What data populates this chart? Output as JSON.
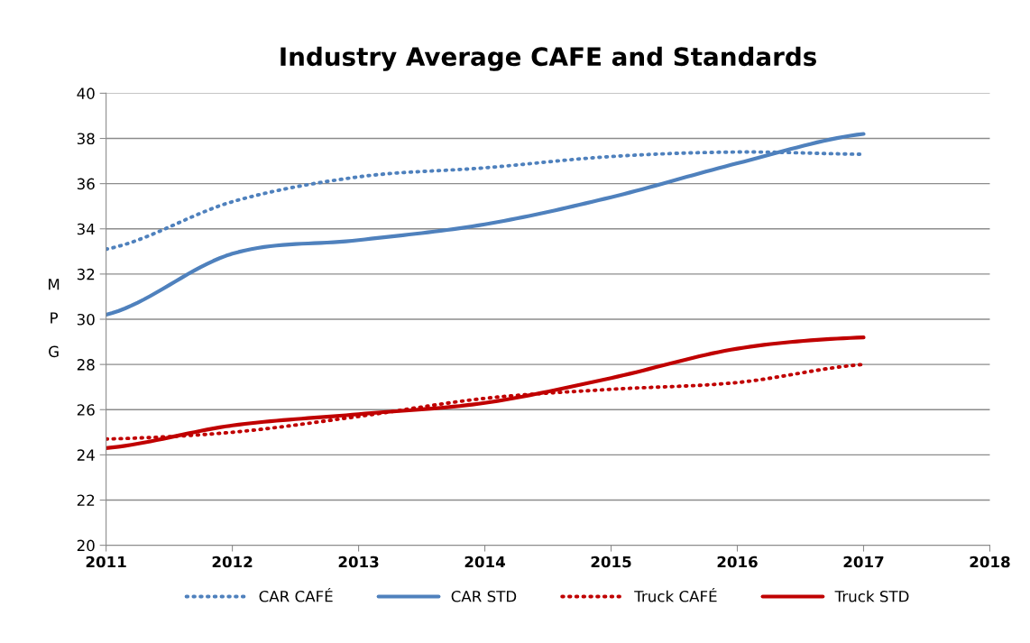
{
  "chart_data": {
    "type": "line",
    "title": "Industry Average CAFE and Standards",
    "ylabel": "MPG",
    "x": [
      2011,
      2012,
      2013,
      2014,
      2015,
      2016,
      2017
    ],
    "series": [
      {
        "name": "CAR CAFÉ",
        "color": "#4f81bd",
        "line_style": "dotted",
        "values": [
          33.1,
          35.2,
          36.3,
          36.7,
          37.2,
          37.4,
          37.3
        ]
      },
      {
        "name": "CAR STD",
        "color": "#4f81bd",
        "line_style": "solid",
        "values": [
          30.2,
          32.9,
          33.5,
          34.2,
          35.4,
          36.9,
          38.2
        ]
      },
      {
        "name": "Truck CAFÉ",
        "color": "#c00000",
        "line_style": "dotted",
        "values": [
          24.7,
          25.0,
          25.7,
          26.5,
          26.9,
          27.2,
          28.0
        ]
      },
      {
        "name": "Truck STD",
        "color": "#c00000",
        "line_style": "solid",
        "values": [
          24.3,
          25.3,
          25.8,
          26.3,
          27.4,
          28.7,
          29.2
        ]
      }
    ],
    "xlim": [
      2011,
      2018
    ],
    "xticks": [
      2011,
      2012,
      2013,
      2014,
      2015,
      2016,
      2017,
      2018
    ],
    "ylim": [
      20,
      40
    ],
    "yticks": [
      20,
      22,
      24,
      26,
      28,
      30,
      32,
      34,
      36,
      38,
      40
    ],
    "grid": "y",
    "legend": "bottom"
  }
}
